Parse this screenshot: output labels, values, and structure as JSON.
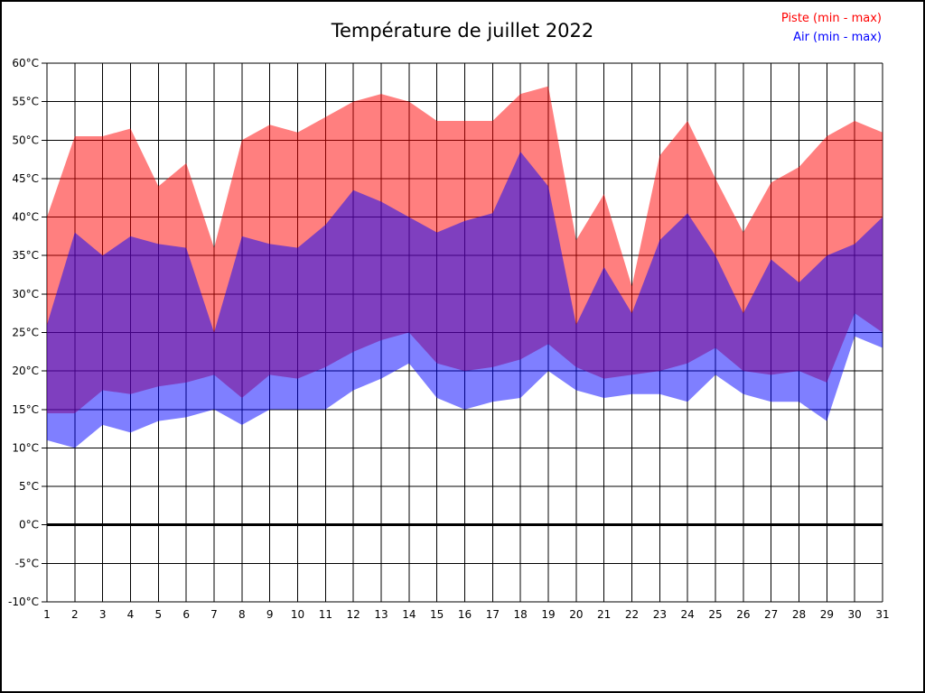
{
  "title": "Température de juillet 2022",
  "legend": {
    "piste_label": "Piste (min - max)",
    "air_label": "Air (min - max)"
  },
  "colors": {
    "piste": "#FF0000",
    "air": "#0000FF",
    "piste_fill": "rgba(255,0,0,0.5)",
    "air_fill": "rgba(0,0,255,0.5)",
    "overlap": "#8040C0",
    "grid": "#000000",
    "background": "#FFFFFF"
  },
  "axes": {
    "y_tick_values": [
      60,
      55,
      50,
      45,
      40,
      35,
      30,
      25,
      20,
      15,
      10,
      5,
      0,
      -5,
      -10
    ],
    "y_tick_labels": [
      "60°C",
      "55°C",
      "50°C",
      "45°C",
      "40°C",
      "35°C",
      "30°C",
      "25°C",
      "20°C",
      "15°C",
      "10°C",
      "5°C",
      "0°C",
      "-5°C",
      "-10°C"
    ],
    "x_tick_labels": [
      "1",
      "2",
      "3",
      "4",
      "5",
      "6",
      "7",
      "8",
      "9",
      "10",
      "11",
      "12",
      "13",
      "14",
      "15",
      "16",
      "17",
      "18",
      "19",
      "20",
      "21",
      "22",
      "23",
      "24",
      "25",
      "26",
      "27",
      "28",
      "29",
      "30",
      "31"
    ],
    "zero_line_value": 0
  },
  "chart_data": {
    "type": "area",
    "title": "Température de juillet 2022",
    "x": [
      1,
      2,
      3,
      4,
      5,
      6,
      7,
      8,
      9,
      10,
      11,
      12,
      13,
      14,
      15,
      16,
      17,
      18,
      19,
      20,
      21,
      22,
      23,
      24,
      25,
      26,
      27,
      28,
      29,
      30,
      31
    ],
    "ylim": [
      -10,
      60
    ],
    "y_step": 5,
    "grid": true,
    "legend_position": "top-right",
    "series": [
      {
        "name": "Piste (min - max)",
        "band": true,
        "color": "#FF0000",
        "fill": "rgba(255,0,0,0.5)",
        "max": [
          40,
          50.5,
          50.5,
          51.5,
          44,
          47,
          36,
          50,
          52,
          51,
          53,
          55,
          56,
          55,
          52.5,
          52.5,
          52.5,
          56,
          57,
          37,
          43,
          31,
          48,
          52.5,
          45,
          38,
          44.5,
          46.5,
          50.5,
          52.5,
          51
        ],
        "min": [
          14.5,
          14.5,
          17.5,
          17,
          18,
          18.5,
          19.5,
          16.5,
          19.5,
          19,
          20.5,
          22.5,
          24,
          25,
          21,
          20,
          20.5,
          21.5,
          23.5,
          20.5,
          19,
          19.5,
          20,
          21,
          23,
          20,
          19.5,
          20,
          18.5,
          27.5,
          25
        ]
      },
      {
        "name": "Air (min - max)",
        "band": true,
        "color": "#0000FF",
        "fill": "rgba(0,0,255,0.5)",
        "max": [
          26,
          38,
          35,
          37.5,
          36.5,
          36,
          25,
          37.5,
          36.5,
          36,
          39,
          43.5,
          42,
          40,
          38,
          39.5,
          40.5,
          48.5,
          44,
          26,
          33.5,
          27.5,
          37,
          40.5,
          35,
          27.5,
          34.5,
          31.5,
          35,
          36.5,
          40
        ],
        "min": [
          11,
          10,
          13,
          12,
          13.5,
          14,
          15,
          13,
          15,
          15,
          15,
          17.5,
          19,
          21,
          16.5,
          15,
          16,
          16.5,
          20,
          17.5,
          16.5,
          17,
          17,
          16,
          19.5,
          17,
          16,
          16,
          13.5,
          24.5,
          23
        ]
      }
    ]
  }
}
